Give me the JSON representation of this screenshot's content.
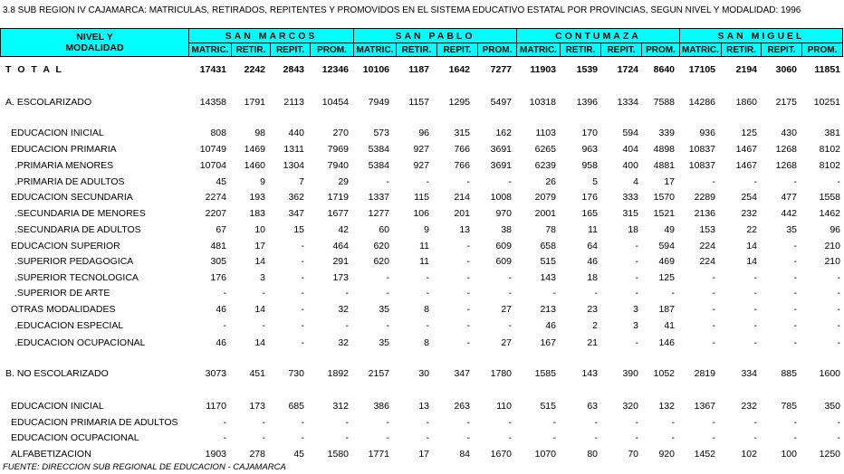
{
  "title": "3.8   SUB REGION IV CAJAMARCA: MATRICULAS, RETIRADOS, REPITENTES Y PROMOVIDOS EN EL SISTEMA EDUCATIVO ESTATAL POR PROVINCIAS, SEGUN NIVEL Y MODALIDAD: 1996",
  "header": {
    "label_lines": [
      "NIVEL Y",
      "MODALIDAD"
    ],
    "groups": [
      "SAN MARCOS",
      "SAN PABLO",
      "CONTUMAZA",
      "SAN MIGUEL"
    ],
    "subheaders": [
      "MATRIC.",
      "RETIR.",
      "REPIT.",
      "PROM."
    ]
  },
  "rows": [
    {
      "label": "T O T A L",
      "values": [
        17431,
        2242,
        2843,
        12346,
        10106,
        1187,
        1642,
        7277,
        11903,
        1539,
        1724,
        8640,
        17105,
        2194,
        3060,
        11851
      ]
    },
    {
      "label": "A. ESCOLARIZADO",
      "values": [
        14358,
        1791,
        2113,
        10454,
        7949,
        1157,
        1295,
        5497,
        10318,
        1396,
        1334,
        7588,
        14286,
        1860,
        2175,
        10251
      ]
    },
    {
      "label": "EDUCACION INICIAL",
      "values": [
        808,
        98,
        440,
        270,
        573,
        96,
        315,
        162,
        1103,
        170,
        594,
        339,
        936,
        125,
        430,
        381
      ]
    },
    {
      "label": "EDUCACION PRIMARIA",
      "values": [
        10749,
        1469,
        1311,
        7969,
        5384,
        927,
        766,
        3691,
        6265,
        963,
        404,
        4898,
        10837,
        1467,
        1268,
        8102
      ]
    },
    {
      "label": ".PRIMARIA MENORES",
      "values": [
        10704,
        1460,
        1304,
        7940,
        5384,
        927,
        766,
        3691,
        6239,
        958,
        400,
        4881,
        10837,
        1467,
        1268,
        8102
      ]
    },
    {
      "label": ".PRIMARIA DE ADULTOS",
      "values": [
        45,
        9,
        7,
        29,
        "-",
        "-",
        "-",
        "-",
        26,
        5,
        4,
        17,
        "-",
        "-",
        "-",
        "-"
      ]
    },
    {
      "label": "EDUCACION SECUNDARIA",
      "values": [
        2274,
        193,
        362,
        1719,
        1337,
        115,
        214,
        1008,
        2079,
        176,
        333,
        1570,
        2289,
        254,
        477,
        1558
      ]
    },
    {
      "label": ".SECUNDARIA DE MENORES",
      "values": [
        2207,
        183,
        347,
        1677,
        1277,
        106,
        201,
        970,
        2001,
        165,
        315,
        1521,
        2136,
        232,
        442,
        1462
      ]
    },
    {
      "label": ".SECUNDARIA DE ADULTOS",
      "values": [
        67,
        10,
        15,
        42,
        60,
        9,
        13,
        38,
        78,
        11,
        18,
        49,
        153,
        22,
        35,
        96
      ]
    },
    {
      "label": "EDUCACION SUPERIOR",
      "values": [
        481,
        17,
        "-",
        464,
        620,
        11,
        "-",
        609,
        658,
        64,
        "-",
        594,
        224,
        14,
        "-",
        210
      ]
    },
    {
      "label": ".SUPERIOR PEDAGOGICA",
      "values": [
        305,
        14,
        "-",
        291,
        620,
        11,
        "-",
        609,
        515,
        46,
        "-",
        469,
        224,
        14,
        "-",
        210
      ]
    },
    {
      "label": ".SUPERIOR TECNOLOGICA",
      "values": [
        176,
        3,
        "-",
        173,
        "-",
        "-",
        "-",
        "-",
        143,
        18,
        "-",
        125,
        "-",
        "-",
        "-",
        "-"
      ]
    },
    {
      "label": ".SUPERIOR DE ARTE",
      "values": [
        "-",
        "-",
        "-",
        "-",
        "-",
        "-",
        "-",
        "-",
        "-",
        "-",
        "-",
        "-",
        "-",
        "-",
        "-",
        "-"
      ]
    },
    {
      "label": "OTRAS MODALIDADES",
      "values": [
        46,
        14,
        "-",
        32,
        35,
        8,
        "-",
        27,
        213,
        23,
        3,
        187,
        "-",
        "-",
        "-",
        "-"
      ]
    },
    {
      "label": ".EDUCACION ESPECIAL",
      "values": [
        "-",
        "-",
        "-",
        "-",
        "-",
        "-",
        "-",
        "-",
        46,
        2,
        3,
        41,
        "-",
        "-",
        "-",
        "-"
      ]
    },
    {
      "label": ".EDUCACION OCUPACIONAL",
      "values": [
        46,
        14,
        "-",
        32,
        35,
        8,
        "-",
        27,
        167,
        21,
        "-",
        146,
        "-",
        "-",
        "-",
        "-"
      ]
    },
    {
      "label": "B. NO ESCOLARIZADO",
      "values": [
        3073,
        451,
        730,
        1892,
        2157,
        30,
        347,
        1780,
        1585,
        143,
        390,
        1052,
        2819,
        334,
        885,
        1600
      ]
    },
    {
      "label": "EDUCACION INICIAL",
      "values": [
        1170,
        173,
        685,
        312,
        386,
        13,
        263,
        110,
        515,
        63,
        320,
        132,
        1367,
        232,
        785,
        350
      ]
    },
    {
      "label": "EDUCACION PRIMARIA DE ADULTOS",
      "values": [
        "-",
        "-",
        "-",
        "-",
        "-",
        "-",
        "-",
        "-",
        "-",
        "-",
        "-",
        "-",
        "-",
        "-",
        "-",
        "-"
      ]
    },
    {
      "label": "EDUCACION OCUPACIONAL",
      "values": [
        "-",
        "-",
        "-",
        "-",
        "-",
        "-",
        "-",
        "-",
        "-",
        "-",
        "-",
        "-",
        "-",
        "-",
        "-",
        "-"
      ]
    },
    {
      "label": "ALFABETIZACION",
      "values": [
        1903,
        278,
        45,
        1580,
        1771,
        17,
        84,
        1670,
        1070,
        80,
        70,
        920,
        1452,
        102,
        100,
        1250
      ]
    }
  ],
  "footer": "FUENTE:  DIRECCION SUB REGIONAL DE EDUCACION - CAJAMARCA"
}
